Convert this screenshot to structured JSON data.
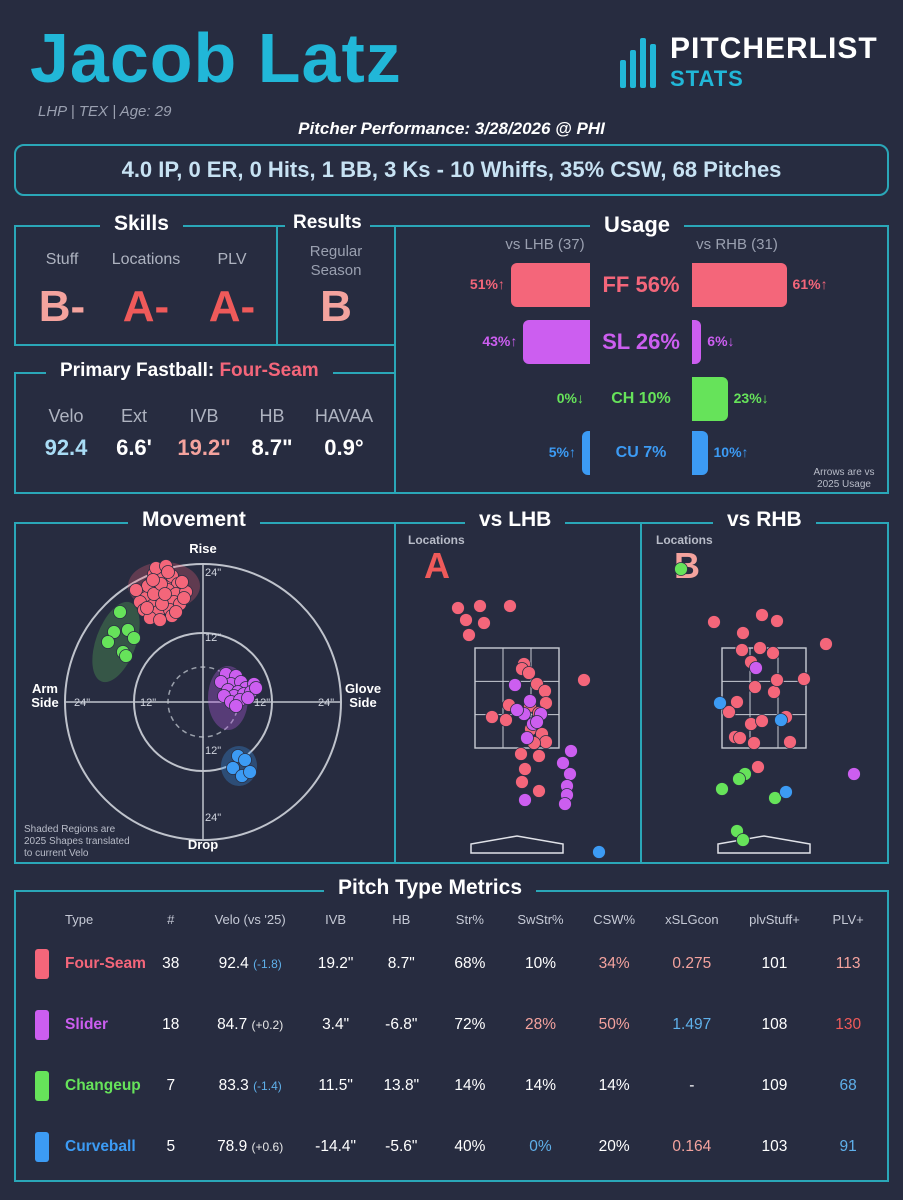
{
  "header": {
    "name": "Jacob Latz",
    "info": "LHP | TEX | Age: 29",
    "logo_main": "PITCHERLIST",
    "logo_sub": "STATS",
    "performance_title": "Pitcher Performance: 3/28/2026 @ PHI",
    "summary_line": "4.0 IP, 0 ER, 0 Hits, 1 BB, 3 Ks - 10 Whiffs, 35% CSW, 68 Pitches"
  },
  "skills": {
    "title": "Skills",
    "items": [
      {
        "label": "Stuff",
        "grade": "B-",
        "color": "#f4a39e"
      },
      {
        "label": "Locations",
        "grade": "A-",
        "color": "#ef5a5a"
      },
      {
        "label": "PLV",
        "grade": "A-",
        "color": "#ef5a5a"
      }
    ]
  },
  "results": {
    "title": "Results",
    "label_line1": "Regular",
    "label_line2": "Season",
    "grade": "B",
    "color": "#f4a39e"
  },
  "fastball": {
    "title": "Primary Fastball:",
    "type": "Four-Seam",
    "stats": [
      {
        "label": "Velo",
        "value": "92.4",
        "color": "#a9dcf5"
      },
      {
        "label": "Ext",
        "value": "6.6'",
        "color": "#ffffff"
      },
      {
        "label": "IVB",
        "value": "19.2\"",
        "color": "#f4a39e"
      },
      {
        "label": "HB",
        "value": "8.7\"",
        "color": "#ffffff"
      },
      {
        "label": "HAVAA",
        "value": "0.9°",
        "color": "#ffffff"
      }
    ]
  },
  "usage": {
    "title": "Usage",
    "lhb_header": "vs LHB (37)",
    "rhb_header": "vs RHB (31)",
    "note_line1": "Arrows are vs",
    "note_line2": "2025 Usage",
    "rows": [
      {
        "label": "FF 56%",
        "color": "#f4667a",
        "lhb": 51,
        "rhb": 61,
        "lhb_text": "51%↑",
        "rhb_text": "61%↑",
        "big": true
      },
      {
        "label": "SL 26%",
        "color": "#cc5ef0",
        "lhb": 43,
        "rhb": 6,
        "lhb_text": "43%↑",
        "rhb_text": "6%↓",
        "big": true
      },
      {
        "label": "CH 10%",
        "color": "#66e35a",
        "lhb": 0,
        "rhb": 23,
        "lhb_text": "0%↓",
        "rhb_text": "23%↓",
        "big": false
      },
      {
        "label": "CU 7%",
        "color": "#3c9bf4",
        "lhb": 5,
        "rhb": 10,
        "lhb_text": "5%↑",
        "rhb_text": "10%↑",
        "big": false
      }
    ]
  },
  "movement": {
    "title": "Movement",
    "rise": "Rise",
    "drop": "Drop",
    "arm_line1": "Arm",
    "arm_line2": "Side",
    "glove_line1": "Glove",
    "glove_line2": "Side",
    "ring_labels": [
      "24\"",
      "12\"",
      "12\"",
      "24\"",
      "12\"",
      "12\"",
      "24\"",
      "24\""
    ],
    "note_line1": "Shaded Regions are",
    "note_line2": "2025 Shapes translated",
    "note_line3": "to current Velo"
  },
  "locations_lhb": {
    "title": "vs LHB",
    "label": "Locations",
    "grade": "A",
    "color": "#ef5a5a"
  },
  "locations_rhb": {
    "title": "vs RHB",
    "label": "Locations",
    "grade": "B",
    "color": "#f4a39e"
  },
  "metrics": {
    "title": "Pitch Type Metrics",
    "headers": [
      "Type",
      "#",
      "Velo (vs '25)",
      "IVB",
      "HB",
      "Str%",
      "SwStr%",
      "CSW%",
      "xSLGcon",
      "plvStuff+",
      "PLV+"
    ],
    "rows": [
      {
        "type": "Four-Seam",
        "color": "#f4667a",
        "count": "38",
        "velo": "92.4",
        "velo_diff": "(-1.8)",
        "velo_diff_color": "#5fb0ea",
        "ivb": "19.2\"",
        "hb": "8.7\"",
        "str": "68%",
        "swstr": "10%",
        "swstr_color": "#ffffff",
        "csw": "34%",
        "csw_color": "#f4a39e",
        "xslg": "0.275",
        "xslg_color": "#f4a39e",
        "plvstuff": "101",
        "plv": "113",
        "plv_color": "#f4a39e"
      },
      {
        "type": "Slider",
        "color": "#cc5ef0",
        "count": "18",
        "velo": "84.7",
        "velo_diff": "(+0.2)",
        "velo_diff_color": "#e8e8e8",
        "ivb": "3.4\"",
        "hb": "-6.8\"",
        "str": "72%",
        "swstr": "28%",
        "swstr_color": "#f4a39e",
        "csw": "50%",
        "csw_color": "#f4a39e",
        "xslg": "1.497",
        "xslg_color": "#5fb0ea",
        "plvstuff": "108",
        "plv": "130",
        "plv_color": "#ef5a5a"
      },
      {
        "type": "Changeup",
        "color": "#66e35a",
        "count": "7",
        "velo": "83.3",
        "velo_diff": "(-1.4)",
        "velo_diff_color": "#5fb0ea",
        "ivb": "11.5\"",
        "hb": "13.8\"",
        "str": "14%",
        "swstr": "14%",
        "swstr_color": "#ffffff",
        "csw": "14%",
        "csw_color": "#ffffff",
        "xslg": "-",
        "xslg_color": "#ffffff",
        "plvstuff": "109",
        "plv": "68",
        "plv_color": "#5fb0ea"
      },
      {
        "type": "Curveball",
        "color": "#3c9bf4",
        "count": "5",
        "velo": "78.9",
        "velo_diff": "(+0.6)",
        "velo_diff_color": "#e8e8e8",
        "ivb": "-14.4\"",
        "hb": "-5.6\"",
        "str": "40%",
        "swstr": "0%",
        "swstr_color": "#5fb0ea",
        "csw": "20%",
        "csw_color": "#ffffff",
        "xslg": "0.164",
        "xslg_color": "#f4a39e",
        "plvstuff": "103",
        "plv": "91",
        "plv_color": "#5fb0ea"
      }
    ]
  }
}
